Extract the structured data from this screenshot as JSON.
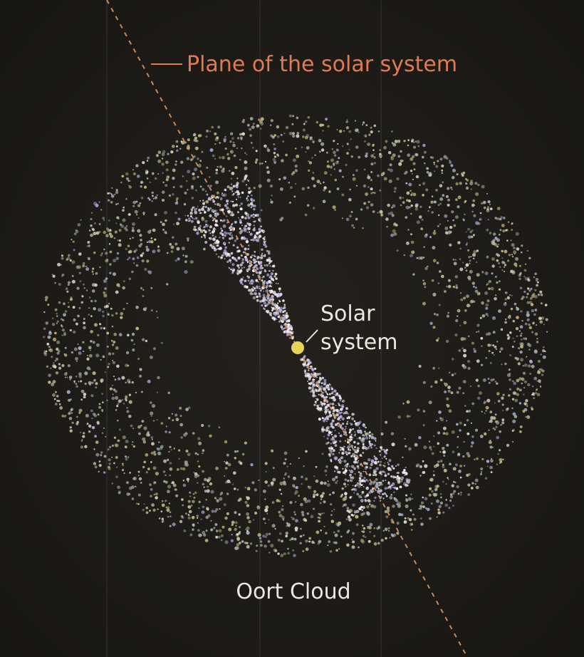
{
  "labels": {
    "plane": "Plane of the solar system",
    "solar_system": [
      "Solar",
      "system"
    ],
    "cloud": "Oort Cloud"
  }
}
